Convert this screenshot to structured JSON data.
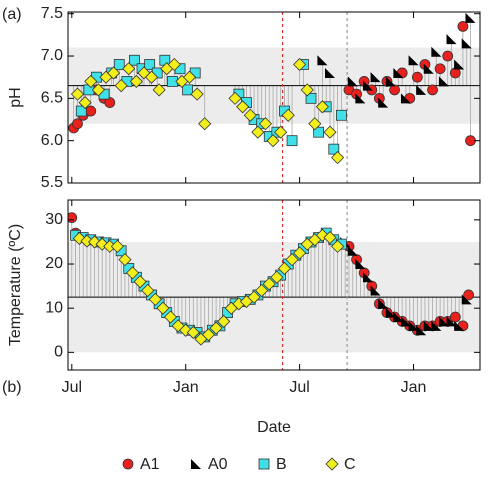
{
  "chart_data": [
    {
      "type": "scatter",
      "label": "(a)",
      "ylabel": "pH",
      "xlim": [
        -0.2,
        21.5
      ],
      "ylim": [
        5.5,
        7.52
      ],
      "xticks": [
        0,
        6,
        12,
        18
      ],
      "yticks": [
        5.5,
        {
          "value": 6,
          "label": "6.0"
        },
        6.5,
        {
          "value": 7,
          "label": "7.0"
        },
        7.5
      ],
      "band": [
        6.2,
        7.1
      ],
      "band_color": "#ececec",
      "mean": 6.65,
      "vlines": [
        {
          "value": 11.1,
          "color": "#e03030"
        },
        {
          "value": 14.5,
          "color": "#999999"
        }
      ],
      "series": [
        {
          "color": "#e8211d",
          "marker": "circle",
          "x": [
            0.1,
            0.3,
            0.6,
            1.0,
            1.3,
            1.7,
            2.0,
            14.6,
            15.0,
            15.4,
            15.8,
            16.2,
            16.6,
            17.0,
            17.4,
            17.8,
            18.2,
            18.6,
            19.0,
            19.4,
            19.8,
            20.2,
            20.6,
            21.0
          ],
          "values": [
            6.15,
            6.2,
            6.3,
            6.35,
            6.6,
            6.5,
            6.45,
            6.6,
            6.55,
            6.7,
            6.6,
            6.5,
            6.7,
            6.6,
            6.8,
            6.5,
            6.75,
            6.9,
            6.6,
            6.85,
            7.0,
            6.8,
            7.35,
            6.0
          ]
        },
        {
          "color": "#000000",
          "marker": "triangle",
          "x": [
            13.2,
            13.6,
            14.8,
            15.2,
            15.6,
            16.0,
            16.4,
            16.8,
            17.2,
            17.6,
            18.0,
            18.4,
            18.8,
            19.2,
            19.6,
            20.0,
            20.4,
            20.8,
            21.0
          ],
          "values": [
            6.95,
            6.8,
            6.7,
            6.5,
            6.65,
            6.75,
            6.45,
            6.7,
            6.8,
            6.5,
            6.95,
            6.6,
            6.85,
            7.05,
            6.7,
            7.2,
            6.9,
            7.15,
            7.45
          ]
        },
        {
          "color": "#3fe0e8",
          "marker": "square",
          "x": [
            0.5,
            0.9,
            1.3,
            1.7,
            2.1,
            2.5,
            2.9,
            3.3,
            3.7,
            4.1,
            4.5,
            4.9,
            5.3,
            5.7,
            6.1,
            6.5,
            8.8,
            9.2,
            9.6,
            10.0,
            10.4,
            10.8,
            11.2,
            11.6,
            12.2,
            12.6,
            13.0,
            13.4,
            13.8,
            14.2
          ],
          "values": [
            6.35,
            6.6,
            6.75,
            6.55,
            6.8,
            6.9,
            6.7,
            6.95,
            6.85,
            6.9,
            6.8,
            6.95,
            6.7,
            6.85,
            6.6,
            6.8,
            6.55,
            6.45,
            6.25,
            6.2,
            6.05,
            6.1,
            6.35,
            6.0,
            6.9,
            6.5,
            6.1,
            6.4,
            5.9,
            6.3
          ]
        },
        {
          "color": "#f2ee1c",
          "marker": "diamond",
          "x": [
            0.3,
            0.7,
            1.0,
            1.4,
            1.8,
            2.2,
            2.6,
            3.0,
            3.4,
            3.8,
            4.2,
            4.6,
            5.0,
            5.4,
            5.8,
            6.2,
            6.6,
            7.0,
            8.6,
            9.0,
            9.4,
            9.8,
            10.2,
            10.6,
            11.0,
            11.4,
            12.0,
            12.4,
            12.8,
            13.2,
            13.6,
            14.0
          ],
          "values": [
            6.55,
            6.45,
            6.7,
            6.6,
            6.75,
            6.8,
            6.65,
            6.85,
            6.7,
            6.8,
            6.75,
            6.6,
            6.85,
            6.9,
            6.7,
            6.75,
            6.55,
            6.2,
            6.5,
            6.4,
            6.3,
            6.1,
            6.2,
            6.0,
            6.1,
            6.3,
            6.9,
            6.6,
            6.2,
            6.4,
            6.1,
            5.8
          ]
        }
      ]
    },
    {
      "type": "scatter",
      "label": "(b)",
      "ylabel": "Temperature (ºC)",
      "xlabel": "Date",
      "xlim": [
        -0.2,
        21.5
      ],
      "ylim": [
        -4,
        34.5
      ],
      "xticks": [
        {
          "value": 0,
          "label": "Jul"
        },
        {
          "value": 6,
          "label": "Jan"
        },
        {
          "value": 12,
          "label": "Jul"
        },
        {
          "value": 18,
          "label": "Jan"
        }
      ],
      "yticks": [
        0,
        10,
        20,
        30
      ],
      "band": [
        0,
        25
      ],
      "band_color": "#ececec",
      "mean": 12.5,
      "vlines": [
        {
          "value": 11.1,
          "color": "#e03030"
        },
        {
          "value": 14.5,
          "color": "#999999"
        }
      ],
      "series": [
        {
          "name": "A1",
          "color": "#e8211d",
          "marker": "circle",
          "x": [
            0.0,
            0.2,
            14.6,
            15.0,
            15.4,
            15.8,
            16.2,
            16.6,
            17.0,
            17.4,
            17.8,
            18.2,
            18.6,
            19.0,
            19.4,
            19.8,
            20.2,
            20.6,
            20.9
          ],
          "values": [
            30.5,
            27,
            24,
            21,
            18,
            15,
            11,
            9,
            8,
            7,
            6,
            5,
            6,
            6,
            7,
            7,
            8,
            6,
            13
          ]
        },
        {
          "name": "A0",
          "color": "#000000",
          "marker": "triangle",
          "x": [
            14.4,
            14.8,
            15.2,
            15.6,
            16.0,
            16.4,
            16.8,
            17.2,
            17.6,
            18.0,
            18.4,
            18.8,
            19.2,
            19.6,
            20.0,
            20.4,
            20.8
          ],
          "values": [
            25,
            23,
            20,
            17,
            14,
            11,
            9,
            8,
            7,
            6,
            5,
            6,
            6,
            7,
            7,
            6,
            12
          ]
        },
        {
          "name": "B",
          "color": "#3fe0e8",
          "marker": "square",
          "x": [
            0.2,
            0.6,
            1.0,
            1.4,
            1.8,
            2.2,
            2.6,
            3.0,
            3.4,
            3.8,
            4.2,
            4.6,
            5.0,
            5.4,
            5.8,
            6.2,
            6.6,
            7.0,
            7.4,
            7.8,
            8.2,
            8.6,
            9.0,
            9.4,
            9.8,
            10.2,
            10.6,
            11.0,
            11.4,
            11.8,
            12.2,
            12.6,
            13.0,
            13.4,
            13.8,
            14.2
          ],
          "values": [
            26.5,
            26,
            25.5,
            25,
            24.8,
            24.5,
            23,
            19,
            17,
            15,
            13,
            11,
            9,
            7,
            5.5,
            5,
            4.5,
            3.5,
            5,
            6,
            9,
            11,
            11.5,
            12,
            13,
            15,
            16,
            17.5,
            20,
            22,
            23.5,
            25,
            26,
            27,
            25.5,
            24.5
          ]
        },
        {
          "name": "C",
          "color": "#f2ee1c",
          "marker": "diamond",
          "x": [
            0.4,
            0.8,
            1.2,
            1.6,
            2.0,
            2.4,
            2.8,
            3.2,
            3.6,
            4.0,
            4.4,
            4.8,
            5.2,
            5.6,
            6.0,
            6.4,
            6.8,
            7.2,
            7.6,
            8.0,
            8.4,
            8.8,
            9.2,
            9.6,
            10.0,
            10.4,
            10.8,
            11.2,
            11.6,
            12.0,
            12.4,
            12.8,
            13.2,
            13.6,
            14.0
          ],
          "values": [
            25.8,
            25.2,
            25,
            24.5,
            24,
            24,
            21,
            18,
            16,
            14,
            12,
            10,
            8,
            6,
            5,
            4.5,
            3,
            4,
            5.5,
            7,
            10,
            11,
            11.5,
            12.5,
            14,
            15.5,
            17,
            19,
            21,
            22.5,
            24.5,
            25.5,
            26.5,
            26,
            24
          ]
        }
      ]
    }
  ]
}
